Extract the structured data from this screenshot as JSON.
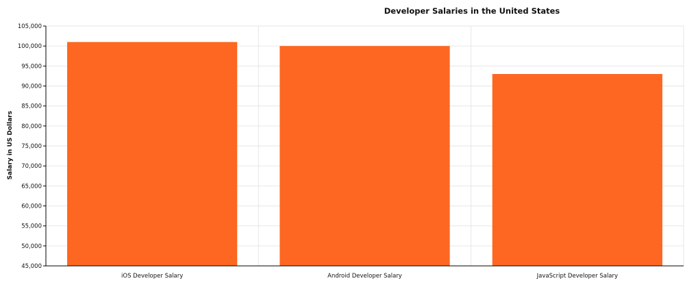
{
  "chart_data": {
    "type": "bar",
    "title": "Developer Salaries in the United States",
    "xlabel": "",
    "ylabel": "Salary in US Dollars",
    "categories": [
      "iOS Developer Salary",
      "Android Developer Salary",
      "JavaScript Developer Salary"
    ],
    "values": [
      101000,
      100000,
      93000
    ],
    "ylim": [
      45000,
      105000
    ],
    "y_ticks": [
      "45,000",
      "50,000",
      "55,000",
      "60,000",
      "65,000",
      "70,000",
      "75,000",
      "80,000",
      "85,000",
      "90,000",
      "95,000",
      "100,000",
      "105,000"
    ],
    "grid": true,
    "bar_color": "#fd6721",
    "grid_color": "#e6e6e6",
    "axis_color": "#000000"
  }
}
